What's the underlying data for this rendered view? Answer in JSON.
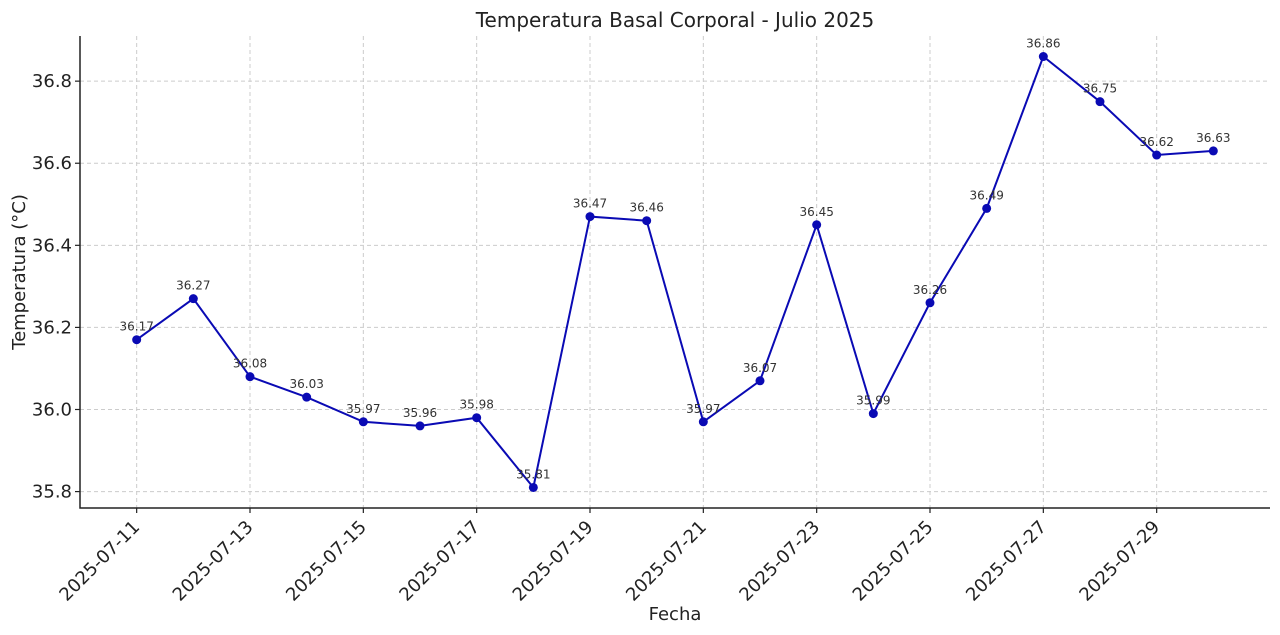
{
  "chart_data": {
    "type": "line",
    "title": "Temperatura Basal Corporal - Julio 2025",
    "xlabel": "Fecha",
    "ylabel": "Temperatura (°C)",
    "x": [
      "2025-07-11",
      "2025-07-12",
      "2025-07-13",
      "2025-07-14",
      "2025-07-15",
      "2025-07-16",
      "2025-07-17",
      "2025-07-18",
      "2025-07-19",
      "2025-07-20",
      "2025-07-21",
      "2025-07-22",
      "2025-07-23",
      "2025-07-24",
      "2025-07-25",
      "2025-07-26",
      "2025-07-27",
      "2025-07-28",
      "2025-07-29",
      "2025-07-30"
    ],
    "series": [
      {
        "values": [
          36.17,
          36.27,
          36.08,
          36.03,
          35.97,
          35.96,
          35.98,
          35.81,
          36.47,
          36.46,
          35.97,
          36.07,
          36.45,
          35.99,
          36.26,
          36.49,
          36.86,
          36.75,
          36.62,
          36.63
        ],
        "labels": [
          "36.17",
          "36.27",
          "36.08",
          "36.03",
          "35.97",
          "35.96",
          "35.98",
          "35.81",
          "36.47",
          "36.46",
          "35.97",
          "36.07",
          "36.45",
          "35.99",
          "36.26",
          "36.49",
          "36.86",
          "36.75",
          "36.62",
          "36.63"
        ],
        "color": "#0a0ab4"
      }
    ],
    "x_ticks": [
      "2025-07-11",
      "2025-07-13",
      "2025-07-15",
      "2025-07-17",
      "2025-07-19",
      "2025-07-21",
      "2025-07-23",
      "2025-07-25",
      "2025-07-27",
      "2025-07-29"
    ],
    "y_ticks": [
      35.8,
      36.0,
      36.2,
      36.4,
      36.6,
      36.8
    ],
    "y_tick_labels": [
      "35.8",
      "36.0",
      "36.2",
      "36.4",
      "36.6",
      "36.8"
    ],
    "ylim": [
      35.76,
      36.91
    ],
    "xlim": [
      "2025-07-10",
      "2025-07-31"
    ],
    "grid": true,
    "legend": "none"
  }
}
